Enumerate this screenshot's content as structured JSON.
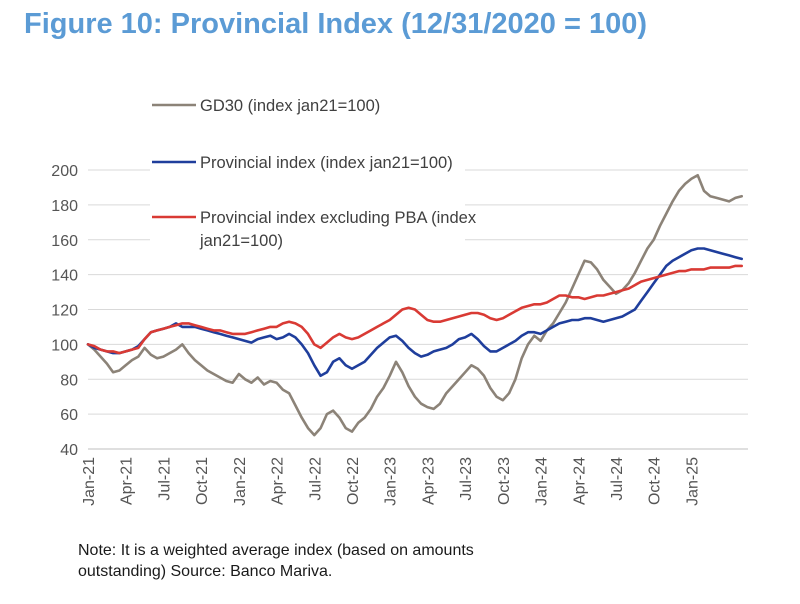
{
  "figure_title": "Figure 10: Provincial Index (12/31/2020 = 100)",
  "note": {
    "line1": "Note: It is a weighted average index (based on amounts",
    "line2": "outstanding) Source: Banco Mariva."
  },
  "chart_data": {
    "type": "line",
    "title": "Figure 10: Provincial Index (12/31/2020 = 100)",
    "xlabel": "",
    "ylabel": "",
    "ylim": [
      40,
      200
    ],
    "yticks": [
      200,
      180,
      160,
      140,
      120,
      100,
      80,
      60,
      40
    ],
    "grid": true,
    "legend_position": "top-left",
    "x_unit": "months since Jan-21",
    "xlim": [
      0,
      52.5
    ],
    "xticks": [
      {
        "label": "Jan-21",
        "x": 0
      },
      {
        "label": "Apr-21",
        "x": 3
      },
      {
        "label": "Jul-21",
        "x": 6
      },
      {
        "label": "Oct-21",
        "x": 9
      },
      {
        "label": "Jan-22",
        "x": 12
      },
      {
        "label": "Apr-22",
        "x": 15
      },
      {
        "label": "Jul-22",
        "x": 18
      },
      {
        "label": "Oct-22",
        "x": 21
      },
      {
        "label": "Jan-23",
        "x": 24
      },
      {
        "label": "Apr-23",
        "x": 27
      },
      {
        "label": "Jul-23",
        "x": 30
      },
      {
        "label": "Oct-23",
        "x": 33
      },
      {
        "label": "Jan-24",
        "x": 36
      },
      {
        "label": "Apr-24",
        "x": 39
      },
      {
        "label": "Jul-24",
        "x": 42
      },
      {
        "label": "Oct-24",
        "x": 45
      },
      {
        "label": "Jan-25",
        "x": 48
      }
    ],
    "series": [
      {
        "name": "GD30 (index jan21=100)",
        "color": "#8c8378",
        "x": [
          0,
          0.5,
          1,
          1.5,
          2,
          2.5,
          3,
          3.5,
          4,
          4.5,
          5,
          5.5,
          6,
          6.5,
          7,
          7.5,
          8,
          8.5,
          9,
          9.5,
          10,
          10.5,
          11,
          11.5,
          12,
          12.5,
          13,
          13.5,
          14,
          14.5,
          15,
          15.5,
          16,
          16.5,
          17,
          17.5,
          18,
          18.5,
          19,
          19.5,
          20,
          20.5,
          21,
          21.5,
          22,
          22.5,
          23,
          23.5,
          24,
          24.5,
          25,
          25.5,
          26,
          26.5,
          27,
          27.5,
          28,
          28.5,
          29,
          29.5,
          30,
          30.5,
          31,
          31.5,
          32,
          32.5,
          33,
          33.5,
          34,
          34.5,
          35,
          35.5,
          36,
          36.5,
          37,
          37.5,
          38,
          38.5,
          39,
          39.5,
          40,
          40.5,
          41,
          41.5,
          42,
          42.5,
          43,
          43.5,
          44,
          44.5,
          45,
          45.5,
          46,
          46.5,
          47,
          47.5,
          48,
          48.5,
          49,
          49.5,
          50,
          50.5,
          51,
          51.5,
          52
        ],
        "values": [
          100,
          97,
          93,
          89,
          84,
          85,
          88,
          91,
          93,
          98,
          94,
          92,
          93,
          95,
          97,
          100,
          95,
          91,
          88,
          85,
          83,
          81,
          79,
          78,
          83,
          80,
          78,
          81,
          77,
          79,
          78,
          74,
          72,
          65,
          58,
          52,
          48,
          52,
          60,
          62,
          58,
          52,
          50,
          55,
          58,
          63,
          70,
          75,
          82,
          90,
          84,
          76,
          70,
          66,
          64,
          63,
          66,
          72,
          76,
          80,
          84,
          88,
          86,
          82,
          75,
          70,
          68,
          72,
          80,
          92,
          100,
          105,
          102,
          108,
          112,
          118,
          124,
          132,
          140,
          148,
          147,
          143,
          137,
          133,
          129,
          131,
          135,
          141,
          148,
          155,
          160,
          168,
          175,
          182,
          188,
          192,
          195,
          197,
          188,
          185,
          184,
          183,
          182,
          184,
          185
        ]
      },
      {
        "name": "Provincial index (index jan21=100)",
        "color": "#1f3e9c",
        "x": [
          0,
          0.5,
          1,
          1.5,
          2,
          2.5,
          3,
          3.5,
          4,
          4.5,
          5,
          5.5,
          6,
          6.5,
          7,
          7.5,
          8,
          8.5,
          9,
          9.5,
          10,
          10.5,
          11,
          11.5,
          12,
          12.5,
          13,
          13.5,
          14,
          14.5,
          15,
          15.5,
          16,
          16.5,
          17,
          17.5,
          18,
          18.5,
          19,
          19.5,
          20,
          20.5,
          21,
          21.5,
          22,
          22.5,
          23,
          23.5,
          24,
          24.5,
          25,
          25.5,
          26,
          26.5,
          27,
          27.5,
          28,
          28.5,
          29,
          29.5,
          30,
          30.5,
          31,
          31.5,
          32,
          32.5,
          33,
          33.5,
          34,
          34.5,
          35,
          35.5,
          36,
          36.5,
          37,
          37.5,
          38,
          38.5,
          39,
          39.5,
          40,
          40.5,
          41,
          41.5,
          42,
          42.5,
          43,
          43.5,
          44,
          44.5,
          45,
          45.5,
          46,
          46.5,
          47,
          47.5,
          48,
          48.5,
          49,
          49.5,
          50,
          50.5,
          51,
          51.5,
          52
        ],
        "values": [
          100,
          98,
          97,
          96,
          95,
          95,
          96,
          97,
          99,
          103,
          107,
          108,
          109,
          110,
          112,
          110,
          110,
          110,
          109,
          108,
          107,
          106,
          105,
          104,
          103,
          102,
          101,
          103,
          104,
          105,
          103,
          104,
          106,
          104,
          100,
          95,
          88,
          82,
          84,
          90,
          92,
          88,
          86,
          88,
          90,
          94,
          98,
          101,
          104,
          105,
          102,
          98,
          95,
          93,
          94,
          96,
          97,
          98,
          100,
          103,
          104,
          106,
          103,
          99,
          96,
          96,
          98,
          100,
          102,
          105,
          107,
          107,
          106,
          108,
          110,
          112,
          113,
          114,
          114,
          115,
          115,
          114,
          113,
          114,
          115,
          116,
          118,
          120,
          125,
          130,
          135,
          140,
          145,
          148,
          150,
          152,
          154,
          155,
          155,
          154,
          153,
          152,
          151,
          150,
          149
        ]
      },
      {
        "name": "Provincial index excluding PBA (index jan21=100)",
        "color": "#d93a34",
        "x": [
          0,
          0.5,
          1,
          1.5,
          2,
          2.5,
          3,
          3.5,
          4,
          4.5,
          5,
          5.5,
          6,
          6.5,
          7,
          7.5,
          8,
          8.5,
          9,
          9.5,
          10,
          10.5,
          11,
          11.5,
          12,
          12.5,
          13,
          13.5,
          14,
          14.5,
          15,
          15.5,
          16,
          16.5,
          17,
          17.5,
          18,
          18.5,
          19,
          19.5,
          20,
          20.5,
          21,
          21.5,
          22,
          22.5,
          23,
          23.5,
          24,
          24.5,
          25,
          25.5,
          26,
          26.5,
          27,
          27.5,
          28,
          28.5,
          29,
          29.5,
          30,
          30.5,
          31,
          31.5,
          32,
          32.5,
          33,
          33.5,
          34,
          34.5,
          35,
          35.5,
          36,
          36.5,
          37,
          37.5,
          38,
          38.5,
          39,
          39.5,
          40,
          40.5,
          41,
          41.5,
          42,
          42.5,
          43,
          43.5,
          44,
          44.5,
          45,
          45.5,
          46,
          46.5,
          47,
          47.5,
          48,
          48.5,
          49,
          49.5,
          50,
          50.5,
          51,
          51.5,
          52
        ],
        "values": [
          100,
          99,
          97,
          96,
          96,
          95,
          96,
          97,
          98,
          103,
          107,
          108,
          109,
          110,
          111,
          112,
          112,
          111,
          110,
          109,
          108,
          108,
          107,
          106,
          106,
          106,
          107,
          108,
          109,
          110,
          110,
          112,
          113,
          112,
          110,
          106,
          100,
          98,
          101,
          104,
          106,
          104,
          103,
          104,
          106,
          108,
          110,
          112,
          114,
          117,
          120,
          121,
          120,
          117,
          114,
          113,
          113,
          114,
          115,
          116,
          117,
          118,
          118,
          117,
          115,
          114,
          115,
          117,
          119,
          121,
          122,
          123,
          123,
          124,
          126,
          128,
          128,
          127,
          127,
          126,
          127,
          128,
          128,
          129,
          130,
          131,
          132,
          134,
          136,
          137,
          138,
          139,
          140,
          141,
          142,
          142,
          143,
          143,
          143,
          144,
          144,
          144,
          144,
          145,
          145
        ]
      }
    ]
  }
}
